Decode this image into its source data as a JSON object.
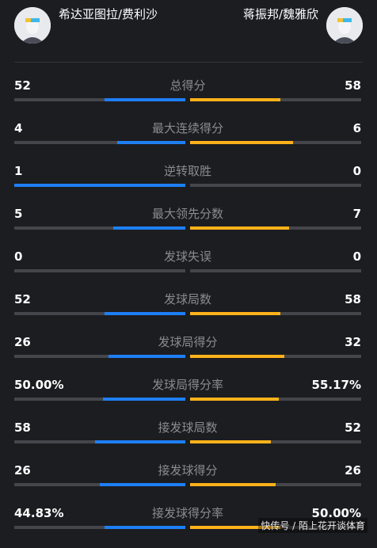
{
  "players": {
    "left": {
      "name": "希达亚图拉/费利沙"
    },
    "right": {
      "name": "蒋振邦/魏雅欣"
    }
  },
  "colors": {
    "left_accent": "#1e7ff5",
    "right_accent": "#ffb21a",
    "track": "#45464b",
    "background": "#1c1d21"
  },
  "stats": [
    {
      "label": "总得分",
      "left": "52",
      "right": "58",
      "left_share": 0.47,
      "right_share": 0.53
    },
    {
      "label": "最大连续得分",
      "left": "4",
      "right": "6",
      "left_share": 0.4,
      "right_share": 0.6
    },
    {
      "label": "逆转取胜",
      "left": "1",
      "right": "0",
      "left_share": 1.0,
      "right_share": 0.0
    },
    {
      "label": "最大领先分数",
      "left": "5",
      "right": "7",
      "left_share": 0.42,
      "right_share": 0.58
    },
    {
      "label": "发球失误",
      "left": "0",
      "right": "0",
      "left_share": 0.0,
      "right_share": 0.0
    },
    {
      "label": "发球局数",
      "left": "52",
      "right": "58",
      "left_share": 0.47,
      "right_share": 0.53
    },
    {
      "label": "发球局得分",
      "left": "26",
      "right": "32",
      "left_share": 0.45,
      "right_share": 0.55
    },
    {
      "label": "发球局得分率",
      "left": "50.00%",
      "right": "55.17%",
      "left_share": 0.48,
      "right_share": 0.52
    },
    {
      "label": "接发球局数",
      "left": "58",
      "right": "52",
      "left_share": 0.53,
      "right_share": 0.47
    },
    {
      "label": "接发球得分",
      "left": "26",
      "right": "26",
      "left_share": 0.5,
      "right_share": 0.5
    },
    {
      "label": "接发球得分率",
      "left": "44.83%",
      "right": "50.00%",
      "left_share": 0.47,
      "right_share": 0.53
    }
  ],
  "watermark": "快传号 / 陌上花开谈体育"
}
